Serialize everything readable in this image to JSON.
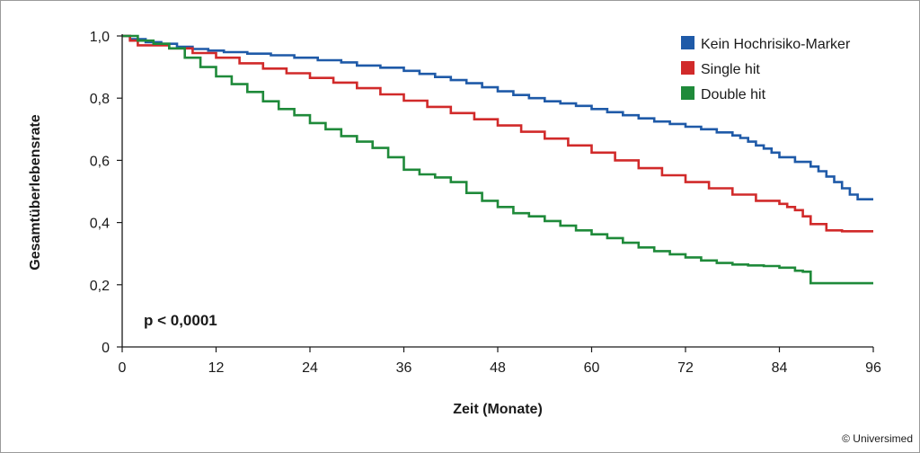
{
  "chart_data": {
    "type": "line",
    "step": true,
    "xlabel": "Zeit (Monate)",
    "ylabel": "Gesamtüberlebensrate",
    "xlim": [
      0,
      96
    ],
    "ylim": [
      0,
      1.0
    ],
    "xticks": [
      0,
      12,
      24,
      36,
      48,
      60,
      72,
      84,
      96
    ],
    "xtick_labels": [
      "0",
      "12",
      "24",
      "36",
      "48",
      "60",
      "72",
      "84",
      "96"
    ],
    "yticks": [
      0,
      0.2,
      0.4,
      0.6,
      0.8,
      1.0
    ],
    "ytick_labels": [
      "0",
      "0,2",
      "0,4",
      "0,6",
      "0,8",
      "1,0"
    ],
    "grid": false,
    "legend_position": "top-right",
    "annotation": "p < 0,0001",
    "series": [
      {
        "name": "Kein Hochrisiko-Marker",
        "color": "#1f5aa8",
        "x": [
          0,
          1,
          3,
          5,
          7,
          9,
          11,
          13,
          16,
          19,
          22,
          25,
          28,
          30,
          33,
          36,
          38,
          40,
          42,
          44,
          46,
          48,
          50,
          52,
          54,
          56,
          58,
          60,
          62,
          64,
          66,
          68,
          70,
          72,
          74,
          76,
          78,
          79,
          80,
          81,
          82,
          83,
          84,
          86,
          88,
          89,
          90,
          91,
          92,
          93,
          94,
          96
        ],
        "y": [
          1.0,
          0.99,
          0.98,
          0.975,
          0.965,
          0.958,
          0.953,
          0.948,
          0.943,
          0.938,
          0.93,
          0.922,
          0.915,
          0.905,
          0.898,
          0.888,
          0.878,
          0.868,
          0.858,
          0.848,
          0.835,
          0.822,
          0.81,
          0.8,
          0.79,
          0.783,
          0.775,
          0.765,
          0.755,
          0.745,
          0.735,
          0.725,
          0.717,
          0.708,
          0.7,
          0.69,
          0.68,
          0.672,
          0.66,
          0.648,
          0.638,
          0.625,
          0.61,
          0.595,
          0.58,
          0.565,
          0.548,
          0.53,
          0.51,
          0.49,
          0.475,
          0.475
        ]
      },
      {
        "name": "Single hit",
        "color": "#d12a2a",
        "x": [
          0,
          1,
          2,
          6,
          9,
          12,
          15,
          18,
          21,
          24,
          27,
          30,
          33,
          36,
          39,
          42,
          45,
          48,
          51,
          54,
          57,
          60,
          63,
          66,
          69,
          72,
          75,
          78,
          81,
          84,
          85,
          86,
          87,
          88,
          90,
          92,
          94,
          96
        ],
        "y": [
          1.0,
          0.985,
          0.97,
          0.96,
          0.945,
          0.93,
          0.912,
          0.895,
          0.88,
          0.865,
          0.85,
          0.832,
          0.812,
          0.792,
          0.772,
          0.752,
          0.732,
          0.712,
          0.692,
          0.67,
          0.648,
          0.625,
          0.6,
          0.575,
          0.552,
          0.53,
          0.51,
          0.49,
          0.47,
          0.46,
          0.45,
          0.44,
          0.42,
          0.395,
          0.375,
          0.372,
          0.372,
          0.372
        ]
      },
      {
        "name": "Double hit",
        "color": "#1f8a3a",
        "x": [
          0,
          2,
          4,
          6,
          8,
          10,
          12,
          14,
          16,
          18,
          20,
          22,
          24,
          26,
          28,
          30,
          32,
          34,
          36,
          38,
          40,
          42,
          44,
          46,
          48,
          50,
          52,
          54,
          56,
          58,
          60,
          62,
          64,
          66,
          68,
          70,
          72,
          74,
          76,
          78,
          80,
          82,
          84,
          86,
          87,
          88,
          90,
          92,
          96
        ],
        "y": [
          1.0,
          0.985,
          0.975,
          0.96,
          0.93,
          0.9,
          0.87,
          0.845,
          0.82,
          0.79,
          0.765,
          0.745,
          0.72,
          0.7,
          0.678,
          0.66,
          0.64,
          0.61,
          0.57,
          0.555,
          0.545,
          0.53,
          0.495,
          0.47,
          0.45,
          0.43,
          0.42,
          0.405,
          0.39,
          0.375,
          0.362,
          0.35,
          0.335,
          0.32,
          0.308,
          0.298,
          0.288,
          0.278,
          0.27,
          0.265,
          0.262,
          0.26,
          0.255,
          0.245,
          0.242,
          0.205,
          0.205,
          0.205,
          0.205
        ]
      }
    ]
  },
  "copyright": "© Universimed"
}
